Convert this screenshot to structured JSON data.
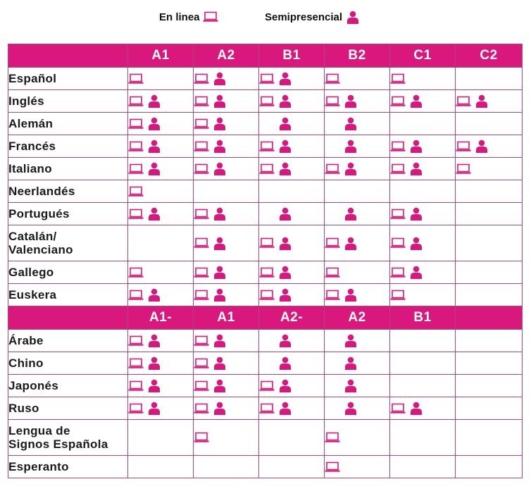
{
  "legend": {
    "online_label": "En linea",
    "blended_label": "Semipresencial",
    "online_icon": "laptop-icon",
    "blended_icon": "person-icon"
  },
  "colors": {
    "accent": "#d9187d",
    "border": "#a64a7e"
  },
  "sections": [
    {
      "levels": [
        "A1",
        "A2",
        "B1",
        "B2",
        "C1",
        "C2"
      ],
      "rows": [
        {
          "language": "Español",
          "modes": [
            [
              "online"
            ],
            [
              "online",
              "blended"
            ],
            [
              "online",
              "blended"
            ],
            [
              "online"
            ],
            [
              "online"
            ],
            []
          ]
        },
        {
          "language": "Inglés",
          "modes": [
            [
              "online",
              "blended"
            ],
            [
              "online",
              "blended"
            ],
            [
              "online",
              "blended"
            ],
            [
              "online",
              "blended"
            ],
            [
              "online",
              "blended"
            ],
            [
              "online",
              "blended"
            ]
          ]
        },
        {
          "language": "Alemán",
          "modes": [
            [
              "online",
              "blended"
            ],
            [
              "online",
              "blended"
            ],
            [
              "blended"
            ],
            [
              "blended"
            ],
            [],
            []
          ]
        },
        {
          "language": "Francés",
          "modes": [
            [
              "online",
              "blended"
            ],
            [
              "online",
              "blended"
            ],
            [
              "online",
              "blended"
            ],
            [
              "blended"
            ],
            [
              "online",
              "blended"
            ],
            [
              "online",
              "blended"
            ]
          ]
        },
        {
          "language": "Italiano",
          "modes": [
            [
              "online",
              "blended"
            ],
            [
              "online",
              "blended"
            ],
            [
              "online",
              "blended"
            ],
            [
              "online",
              "blended"
            ],
            [
              "online",
              "blended"
            ],
            [
              "online"
            ]
          ]
        },
        {
          "language": "Neerlandés",
          "modes": [
            [
              "online"
            ],
            [],
            [],
            [],
            [],
            []
          ]
        },
        {
          "language": "Portugués",
          "modes": [
            [
              "online",
              "blended"
            ],
            [
              "online",
              "blended"
            ],
            [
              "blended"
            ],
            [
              "blended"
            ],
            [
              "online",
              "blended"
            ],
            []
          ]
        },
        {
          "language": "Catalán/\nValenciano",
          "modes": [
            [],
            [
              "online",
              "blended"
            ],
            [
              "online",
              "blended"
            ],
            [
              "online",
              "blended"
            ],
            [
              "online",
              "blended"
            ],
            []
          ]
        },
        {
          "language": "Gallego",
          "modes": [
            [
              "online"
            ],
            [
              "online",
              "blended"
            ],
            [
              "online",
              "blended"
            ],
            [
              "online"
            ],
            [
              "online",
              "blended"
            ],
            []
          ]
        },
        {
          "language": "Euskera",
          "modes": [
            [
              "online",
              "blended"
            ],
            [
              "online",
              "blended"
            ],
            [
              "online",
              "blended"
            ],
            [
              "online",
              "blended"
            ],
            [
              "online"
            ],
            []
          ]
        }
      ]
    },
    {
      "levels": [
        "A1-",
        "A1",
        "A2-",
        "A2",
        "B1",
        ""
      ],
      "rows": [
        {
          "language": "Árabe",
          "modes": [
            [
              "online",
              "blended"
            ],
            [
              "online",
              "blended"
            ],
            [
              "blended"
            ],
            [
              "blended"
            ],
            [],
            []
          ]
        },
        {
          "language": "Chino",
          "modes": [
            [
              "online",
              "blended"
            ],
            [
              "online",
              "blended"
            ],
            [
              "blended"
            ],
            [
              "blended"
            ],
            [],
            []
          ]
        },
        {
          "language": "Japonés",
          "modes": [
            [
              "online",
              "blended"
            ],
            [
              "online",
              "blended"
            ],
            [
              "online",
              "blended"
            ],
            [
              "blended"
            ],
            [],
            []
          ]
        },
        {
          "language": "Ruso",
          "modes": [
            [
              "online",
              "blended"
            ],
            [
              "online",
              "blended"
            ],
            [
              "online",
              "blended"
            ],
            [
              "blended"
            ],
            [
              "online",
              "blended"
            ],
            []
          ]
        },
        {
          "language": "Lengua de\nSignos Española",
          "modes": [
            [],
            [
              "online"
            ],
            [],
            [
              "online"
            ],
            [],
            []
          ]
        },
        {
          "language": "Esperanto",
          "modes": [
            [],
            [],
            [],
            [
              "online"
            ],
            [],
            []
          ]
        }
      ]
    }
  ]
}
